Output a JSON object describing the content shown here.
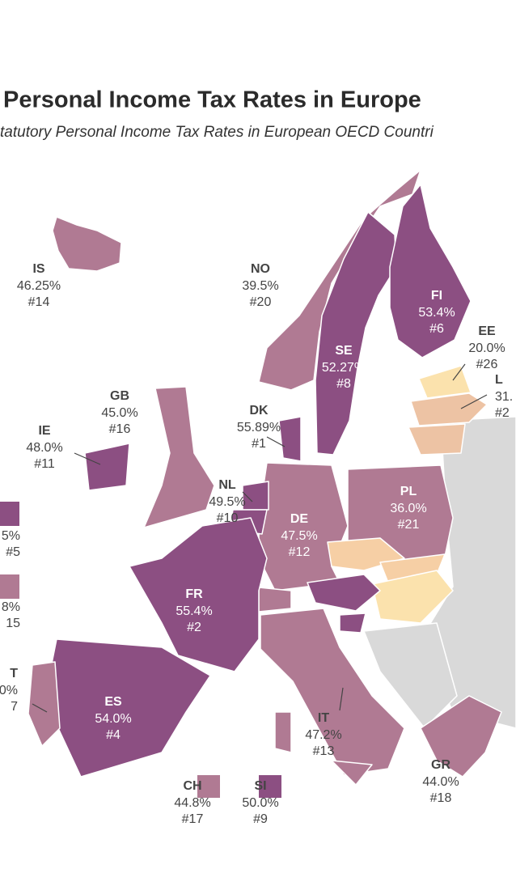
{
  "header": {
    "title": "Personal Income Tax Rates in Europe",
    "subtitle": "tatutory Personal Income Tax Rates in European OECD Countri"
  },
  "labels": [
    {
      "code": "IS",
      "rate": "46.25%",
      "rank": "#14"
    },
    {
      "code": "NO",
      "rate": "39.5%",
      "rank": "#20"
    },
    {
      "code": "FI",
      "rate": "53.4%",
      "rank": "#6"
    },
    {
      "code": "EE",
      "rate": "20.0%",
      "rank": "#26"
    },
    {
      "code": "L",
      "rate": "31.",
      "rank": "#2"
    },
    {
      "code": "SE",
      "rate": "52.27%",
      "rank": "#8"
    },
    {
      "code": "GB",
      "rate": "45.0%",
      "rank": "#16"
    },
    {
      "code": "DK",
      "rate": "55.89%",
      "rank": "#1"
    },
    {
      "code": "IE",
      "rate": "48.0%",
      "rank": "#11"
    },
    {
      "code": "NL",
      "rate": "49.5%",
      "rank": "#10"
    },
    {
      "code": "PL",
      "rate": "36.0%",
      "rank": "#21"
    },
    {
      "code": "DE",
      "rate": "47.5%",
      "rank": "#12"
    },
    {
      "code": "FR",
      "rate": "55.4%",
      "rank": "#2"
    },
    {
      "code": "ES",
      "rate": "54.0%",
      "rank": "#4"
    },
    {
      "code": "IT",
      "rate": "47.2%",
      "rank": "#13"
    },
    {
      "code": "GR",
      "rate": "44.0%",
      "rank": "#18"
    },
    {
      "code": "CH",
      "rate": "44.8%",
      "rank": "#17"
    },
    {
      "code": "SI",
      "rate": "50.0%",
      "rank": "#9"
    },
    {
      "rate": "5%",
      "rank": "#5"
    },
    {
      "rate": "8%",
      "rank": "15"
    },
    {
      "code": "T",
      "rate": "0%",
      "rank": "7"
    }
  ]
}
